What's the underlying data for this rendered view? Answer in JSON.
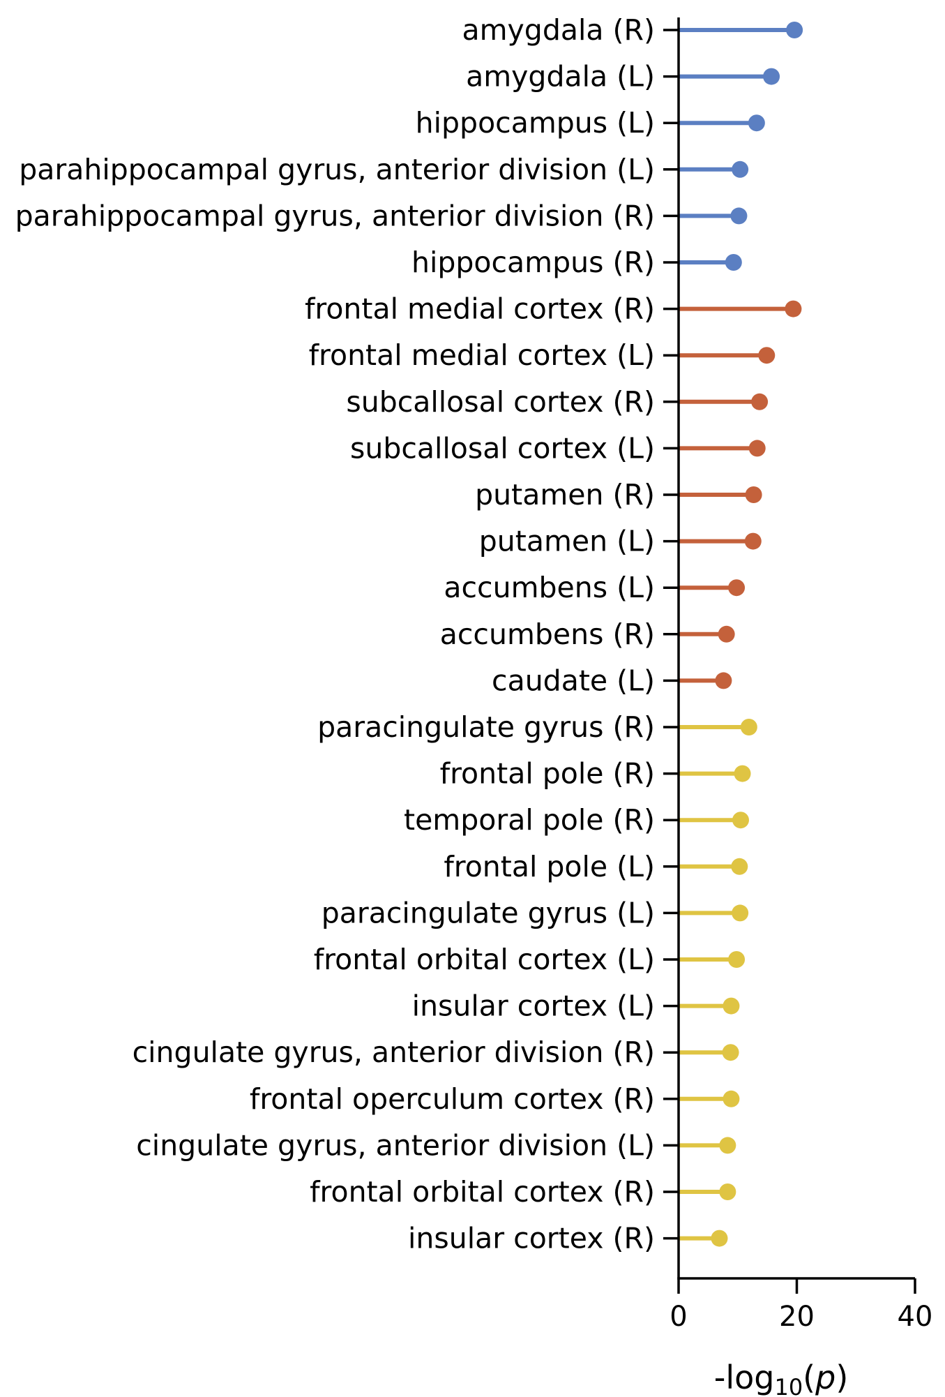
{
  "chart_data": {
    "type": "lollipop",
    "orientation": "horizontal",
    "xlabel": "-log10(p)",
    "xlim": [
      0,
      40
    ],
    "xticks": [
      0,
      20,
      40
    ],
    "grid": false,
    "categories": [
      "amygdala (R)",
      "amygdala (L)",
      "hippocampus (L)",
      "parahippocampal gyrus, anterior division (L)",
      "parahippocampal gyrus, anterior division (R)",
      "hippocampus (R)",
      "frontal medial cortex (R)",
      "frontal medial cortex (L)",
      "subcallosal cortex (R)",
      "subcallosal cortex (L)",
      "putamen (R)",
      "putamen (L)",
      "accumbens (L)",
      "accumbens (R)",
      "caudate (L)",
      "paracingulate gyrus (R)",
      "frontal pole (R)",
      "temporal pole (R)",
      "frontal pole (L)",
      "paracingulate gyrus (L)",
      "frontal orbital cortex (L)",
      "insular cortex (L)",
      "cingulate gyrus, anterior division (R)",
      "frontal operculum cortex (R)",
      "cingulate gyrus, anterior division (L)",
      "frontal orbital cortex (R)",
      "insular cortex (R)"
    ],
    "values": [
      19.6,
      15.7,
      13.2,
      10.4,
      10.2,
      9.3,
      19.4,
      14.9,
      13.7,
      13.3,
      12.7,
      12.6,
      9.8,
      8.1,
      7.6,
      11.9,
      10.8,
      10.5,
      10.3,
      10.4,
      9.8,
      8.9,
      8.8,
      8.9,
      8.3,
      8.3,
      6.9
    ],
    "groups": [
      0,
      0,
      0,
      0,
      0,
      0,
      1,
      1,
      1,
      1,
      1,
      1,
      1,
      1,
      1,
      2,
      2,
      2,
      2,
      2,
      2,
      2,
      2,
      2,
      2,
      2,
      2
    ],
    "group_colors": [
      "#5b7fc2",
      "#c4613b",
      "#dfc443"
    ]
  }
}
